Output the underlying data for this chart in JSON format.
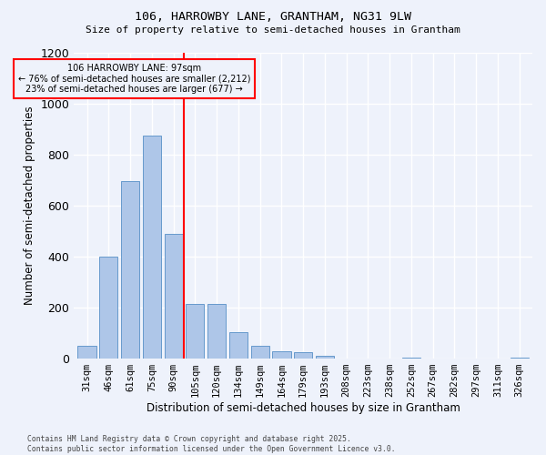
{
  "title1": "106, HARROWBY LANE, GRANTHAM, NG31 9LW",
  "title2": "Size of property relative to semi-detached houses in Grantham",
  "xlabel": "Distribution of semi-detached houses by size in Grantham",
  "ylabel": "Number of semi-detached properties",
  "bar_categories": [
    "31sqm",
    "46sqm",
    "61sqm",
    "75sqm",
    "90sqm",
    "105sqm",
    "120sqm",
    "134sqm",
    "149sqm",
    "164sqm",
    "179sqm",
    "193sqm",
    "208sqm",
    "223sqm",
    "238sqm",
    "252sqm",
    "267sqm",
    "282sqm",
    "297sqm",
    "311sqm",
    "326sqm"
  ],
  "bar_values": [
    50,
    400,
    695,
    875,
    490,
    215,
    215,
    105,
    50,
    30,
    25,
    10,
    0,
    0,
    0,
    5,
    0,
    0,
    0,
    0,
    5
  ],
  "bar_color": "#aec6e8",
  "bar_edgecolor": "#6699cc",
  "vline_x": 4.5,
  "vline_color": "red",
  "vline_label_title": "106 HARROWBY LANE: 97sqm",
  "vline_label_line2": "← 76% of semi-detached houses are smaller (2,212)",
  "vline_label_line3": "23% of semi-detached houses are larger (677) →",
  "annotation_box_color": "red",
  "ylim": [
    0,
    1200
  ],
  "yticks": [
    0,
    200,
    400,
    600,
    800,
    1000,
    1200
  ],
  "footnote1": "Contains HM Land Registry data © Crown copyright and database right 2025.",
  "footnote2": "Contains public sector information licensed under the Open Government Licence v3.0.",
  "bg_color": "#eef2fb"
}
